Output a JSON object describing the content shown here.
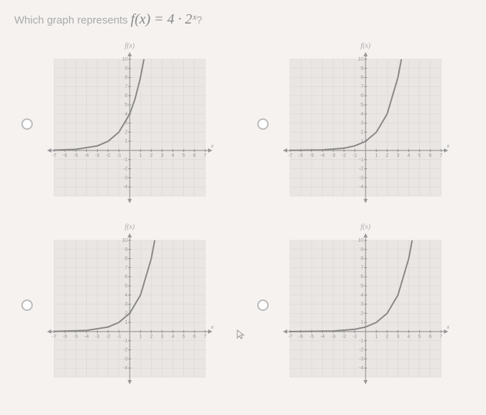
{
  "question": {
    "prefix": "Which graph represents ",
    "formula": "f(x) = 4 · 2ˣ",
    "suffix": "?"
  },
  "axis_label": "f(x)",
  "x_axis_label": "x",
  "grid": {
    "xmin": -7,
    "xmax": 7,
    "ymin": -5,
    "ymax": 10,
    "background_color": "#eae6e3",
    "grid_color": "#d8d4d0",
    "axis_color": "#999999",
    "curve_color": "#888888",
    "y_ticks": [
      -4,
      -3,
      -2,
      -1,
      1,
      2,
      3,
      4,
      5,
      6,
      7,
      8,
      9,
      10
    ],
    "x_ticks": [
      -7,
      -6,
      -5,
      -4,
      -3,
      -2,
      -1,
      1,
      2,
      3,
      4,
      5,
      6,
      7
    ]
  },
  "options": [
    {
      "id": "A",
      "curve_points": [
        [
          -7,
          0.03
        ],
        [
          -5,
          0.125
        ],
        [
          -3,
          0.5
        ],
        [
          -2,
          1
        ],
        [
          -1,
          2
        ],
        [
          0,
          4
        ],
        [
          0.5,
          5.66
        ],
        [
          1,
          8
        ],
        [
          1.32,
          10
        ]
      ]
    },
    {
      "id": "B",
      "curve_points": [
        [
          -7,
          0.008
        ],
        [
          -4,
          0.06
        ],
        [
          -2,
          0.25
        ],
        [
          -1,
          0.5
        ],
        [
          0,
          1
        ],
        [
          1,
          2
        ],
        [
          2,
          4
        ],
        [
          3,
          8
        ],
        [
          3.32,
          10
        ]
      ]
    },
    {
      "id": "C",
      "curve_points": [
        [
          -7,
          0.016
        ],
        [
          -4,
          0.125
        ],
        [
          -2,
          0.5
        ],
        [
          -1,
          1
        ],
        [
          0,
          2
        ],
        [
          1,
          4
        ],
        [
          2,
          8
        ],
        [
          2.32,
          10
        ]
      ]
    },
    {
      "id": "D",
      "curve_points": [
        [
          -7,
          0.004
        ],
        [
          -3,
          0.06
        ],
        [
          -1,
          0.25
        ],
        [
          0,
          0.5
        ],
        [
          1,
          1
        ],
        [
          2,
          2
        ],
        [
          3,
          4
        ],
        [
          4,
          8
        ],
        [
          4.32,
          10
        ]
      ]
    }
  ]
}
